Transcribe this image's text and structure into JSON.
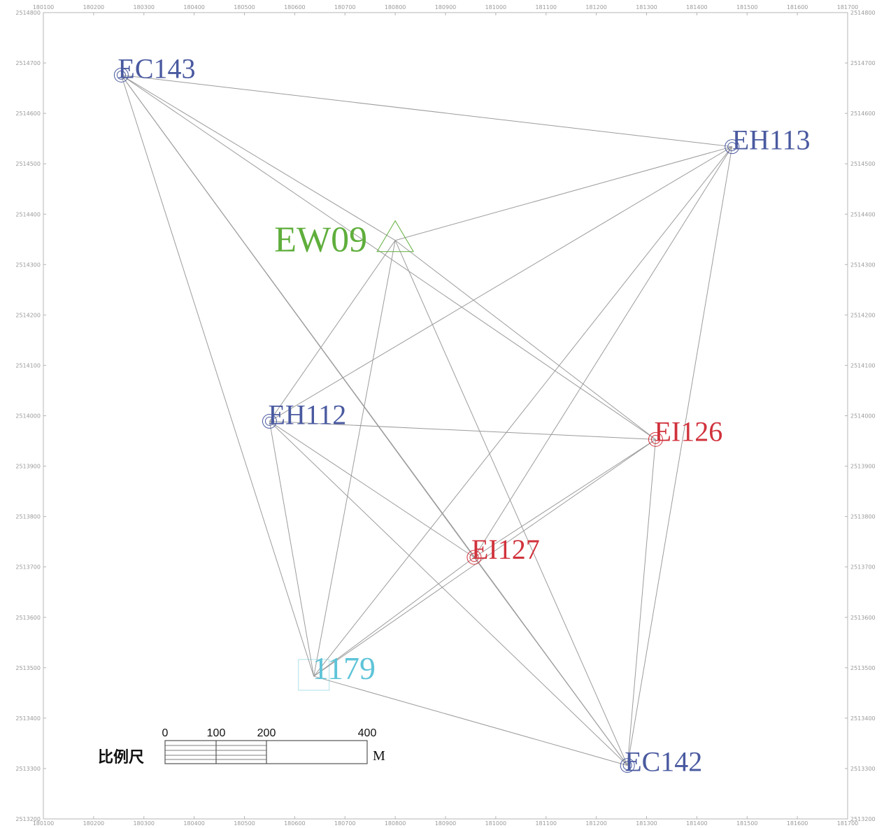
{
  "map": {
    "x_min": 180100,
    "x_max": 181700,
    "y_min": 2513200,
    "y_max": 2514800,
    "x_ticks": [
      180100,
      180200,
      180300,
      180400,
      180500,
      180600,
      180700,
      180800,
      180900,
      181000,
      181100,
      181200,
      181300,
      181400,
      181500,
      181600,
      181700
    ],
    "y_ticks": [
      2514800,
      2514700,
      2514600,
      2514500,
      2514400,
      2514300,
      2514200,
      2514100,
      2514000,
      2513900,
      2513800,
      2513700,
      2513600,
      2513500,
      2513400,
      2513300,
      2513200
    ]
  },
  "stations": [
    {
      "id": "EC143",
      "label": "EC143",
      "x": 180255,
      "y": 2514676,
      "symbol": "double-circle",
      "color": "#4a5aa0"
    },
    {
      "id": "EH113",
      "label": "EH113",
      "x": 181470,
      "y": 2514534,
      "symbol": "double-circle",
      "color": "#4a5aa0"
    },
    {
      "id": "EW09",
      "label": "EW09",
      "x": 180800,
      "y": 2514348,
      "symbol": "triangle",
      "color": "#5fae3c"
    },
    {
      "id": "EH112",
      "label": "EH112",
      "x": 180550,
      "y": 2513989,
      "symbol": "double-circle",
      "color": "#4a5aa0"
    },
    {
      "id": "EI126",
      "label": "EI126",
      "x": 181318,
      "y": 2513953,
      "symbol": "double-circle",
      "color": "#d0323c"
    },
    {
      "id": "EI127",
      "label": "EI127",
      "x": 180957,
      "y": 2513719,
      "symbol": "double-circle",
      "color": "#d0323c"
    },
    {
      "id": "1179",
      "label": "1179",
      "x": 180638,
      "y": 2513483,
      "symbol": "square",
      "color": "#5fc4d8"
    },
    {
      "id": "EC142",
      "label": "EC142",
      "x": 181262,
      "y": 2513306,
      "symbol": "double-circle",
      "color": "#4a5aa0"
    }
  ],
  "connections": [
    [
      "EC143",
      "EH113"
    ],
    [
      "EC143",
      "EI126"
    ],
    [
      "EC143",
      "EI127"
    ],
    [
      "EC143",
      "1179"
    ],
    [
      "EC143",
      "EC142"
    ],
    [
      "EC143",
      "EW09"
    ],
    [
      "EH113",
      "EW09"
    ],
    [
      "EH113",
      "EH112"
    ],
    [
      "EH113",
      "EI127"
    ],
    [
      "EH113",
      "1179"
    ],
    [
      "EH113",
      "EC142"
    ],
    [
      "EW09",
      "EH112"
    ],
    [
      "EW09",
      "1179"
    ],
    [
      "EW09",
      "EI126"
    ],
    [
      "EW09",
      "EC142"
    ],
    [
      "EH112",
      "EI126"
    ],
    [
      "EH112",
      "EI127"
    ],
    [
      "EH112",
      "1179"
    ],
    [
      "EH112",
      "EC142"
    ],
    [
      "EI126",
      "EI127"
    ],
    [
      "EI126",
      "1179"
    ],
    [
      "EI126",
      "EC142"
    ],
    [
      "EI127",
      "1179"
    ],
    [
      "EI127",
      "EC142"
    ],
    [
      "1179",
      "EC142"
    ]
  ],
  "scale_bar": {
    "title": "比例尺",
    "unit": "M",
    "labels": [
      "0",
      "100",
      "200",
      "400"
    ]
  },
  "colors": {
    "line": "#9c9c9c",
    "frame": "#b5b5b5"
  }
}
